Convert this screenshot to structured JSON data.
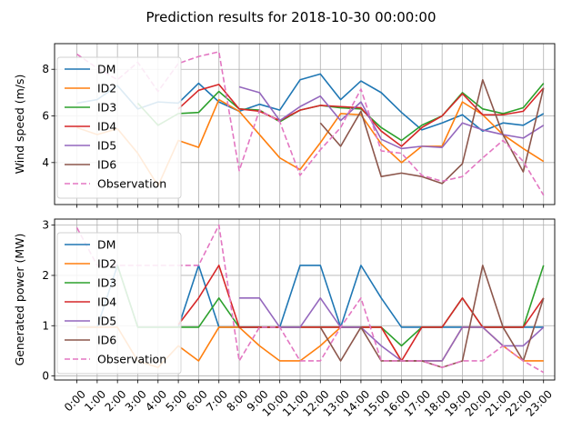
{
  "chart_data": {
    "suptitle": "Prediction results for 2018-10-30 00:00:00",
    "type": "line",
    "x_categories": [
      "0:00",
      "1:00",
      "2:00",
      "3:00",
      "4:00",
      "5:00",
      "6:00",
      "7:00",
      "8:00",
      "9:00",
      "10:00",
      "11:00",
      "12:00",
      "13:00",
      "14:00",
      "15:00",
      "16:00",
      "17:00",
      "18:00",
      "19:00",
      "20:00",
      "21:00",
      "22:00",
      "23:00"
    ],
    "legend_location": "upper left",
    "grid": true,
    "subplots": [
      {
        "ylabel": "Wind speed (m/s)",
        "ylim": [
          2.2,
          9.1
        ],
        "yticks": [
          4,
          6,
          8
        ],
        "series": [
          {
            "name": "DM",
            "color": "#1f77b4",
            "style": "solid",
            "values": [
              6.55,
              6.7,
              7.3,
              6.3,
              6.6,
              6.55,
              7.4,
              6.6,
              6.2,
              6.5,
              6.25,
              7.55,
              7.8,
              6.7,
              7.5,
              7.0,
              6.15,
              5.4,
              5.7,
              6.05,
              5.35,
              5.7,
              5.6,
              6.1
            ]
          },
          {
            "name": "ID2",
            "color": "#ff7f0e",
            "style": "solid",
            "values": [
              5.5,
              5.2,
              5.45,
              4.4,
              3.0,
              4.95,
              4.65,
              6.7,
              6.2,
              5.2,
              4.2,
              3.7,
              4.85,
              6.1,
              6.05,
              4.8,
              4.0,
              4.7,
              4.7,
              6.6,
              6.05,
              5.2,
              4.6,
              4.05
            ]
          },
          {
            "name": "ID3",
            "color": "#2ca02c",
            "style": "solid",
            "values": [
              null,
              null,
              null,
              6.55,
              5.6,
              6.1,
              6.15,
              7.05,
              6.3,
              6.25,
              5.75,
              6.25,
              6.45,
              6.35,
              6.3,
              5.5,
              4.95,
              5.6,
              6.0,
              7.0,
              6.3,
              6.1,
              6.35,
              7.4
            ]
          },
          {
            "name": "ID4",
            "color": "#d62728",
            "style": "solid",
            "values": [
              null,
              null,
              null,
              null,
              null,
              6.3,
              7.1,
              7.35,
              6.3,
              6.2,
              5.8,
              6.25,
              6.45,
              6.4,
              6.35,
              5.35,
              4.7,
              5.5,
              6.0,
              6.95,
              6.05,
              6.05,
              6.2,
              7.2
            ]
          },
          {
            "name": "ID5",
            "color": "#9467bd",
            "style": "solid",
            "values": [
              null,
              null,
              null,
              null,
              null,
              null,
              null,
              null,
              7.25,
              7.0,
              5.8,
              6.4,
              6.85,
              5.8,
              6.6,
              5.0,
              4.6,
              4.7,
              4.65,
              5.7,
              5.4,
              5.2,
              5.05,
              5.6
            ]
          },
          {
            "name": "ID6",
            "color": "#8c564b",
            "style": "solid",
            "values": [
              null,
              null,
              null,
              null,
              null,
              null,
              null,
              null,
              null,
              null,
              null,
              null,
              5.7,
              4.7,
              6.2,
              3.4,
              3.55,
              3.4,
              3.1,
              3.95,
              7.55,
              5.2,
              3.6,
              7.2
            ]
          },
          {
            "name": "Observation",
            "color": "#e377c2",
            "style": "dashed",
            "values": [
              8.65,
              8.05,
              7.55,
              8.3,
              7.05,
              8.25,
              8.55,
              8.75,
              3.65,
              6.25,
              5.75,
              3.45,
              4.55,
              5.5,
              7.15,
              4.5,
              4.4,
              3.45,
              3.2,
              3.4,
              4.2,
              4.95,
              4.05,
              2.6
            ]
          }
        ]
      },
      {
        "ylabel": "Generated power (MW)",
        "ylim": [
          -0.08,
          3.12
        ],
        "yticks": [
          0,
          1,
          2,
          3
        ],
        "series": [
          {
            "name": "DM",
            "color": "#1f77b4",
            "style": "solid",
            "values": [
              0.97,
              0.97,
              2.2,
              0.97,
              0.97,
              0.97,
              2.2,
              0.97,
              0.97,
              0.97,
              0.97,
              2.2,
              2.2,
              0.97,
              2.2,
              1.55,
              0.97,
              0.97,
              0.97,
              0.97,
              0.97,
              0.97,
              0.97,
              0.97
            ]
          },
          {
            "name": "ID2",
            "color": "#ff7f0e",
            "style": "solid",
            "values": [
              0.97,
              0.97,
              0.97,
              0.3,
              0.17,
              0.6,
              0.3,
              0.97,
              0.97,
              0.6,
              0.3,
              0.3,
              0.6,
              0.97,
              0.97,
              0.97,
              0.3,
              0.3,
              0.3,
              0.97,
              0.97,
              0.6,
              0.3,
              0.3
            ]
          },
          {
            "name": "ID3",
            "color": "#2ca02c",
            "style": "solid",
            "values": [
              null,
              null,
              2.2,
              0.97,
              0.97,
              0.97,
              0.97,
              1.55,
              0.97,
              0.97,
              0.97,
              0.97,
              0.97,
              0.97,
              0.97,
              0.97,
              0.6,
              0.97,
              0.97,
              1.55,
              0.97,
              0.97,
              0.97,
              2.2
            ]
          },
          {
            "name": "ID4",
            "color": "#d62728",
            "style": "solid",
            "values": [
              null,
              null,
              null,
              null,
              null,
              1.02,
              1.55,
              2.2,
              0.97,
              0.97,
              0.97,
              0.97,
              0.97,
              0.97,
              0.97,
              0.97,
              0.3,
              0.97,
              0.97,
              1.55,
              0.97,
              0.97,
              0.97,
              1.55
            ]
          },
          {
            "name": "ID5",
            "color": "#9467bd",
            "style": "solid",
            "values": [
              null,
              null,
              null,
              null,
              null,
              null,
              null,
              null,
              1.55,
              1.55,
              0.97,
              0.97,
              1.55,
              0.97,
              0.97,
              0.6,
              0.3,
              0.3,
              0.3,
              0.97,
              0.97,
              0.6,
              0.6,
              0.97
            ]
          },
          {
            "name": "ID6",
            "color": "#8c564b",
            "style": "solid",
            "values": [
              null,
              null,
              null,
              null,
              null,
              null,
              null,
              null,
              null,
              null,
              null,
              null,
              0.97,
              0.3,
              0.97,
              0.3,
              0.3,
              0.3,
              0.17,
              0.3,
              2.2,
              0.97,
              0.3,
              1.55
            ]
          },
          {
            "name": "Observation",
            "color": "#e377c2",
            "style": "dashed",
            "values": [
              2.95,
              2.2,
              2.2,
              2.2,
              2.2,
              2.2,
              2.2,
              3.0,
              0.3,
              0.97,
              0.97,
              0.3,
              0.3,
              0.97,
              1.55,
              0.3,
              0.3,
              0.3,
              0.17,
              0.3,
              0.3,
              0.6,
              0.3,
              0.07
            ]
          }
        ]
      }
    ]
  }
}
